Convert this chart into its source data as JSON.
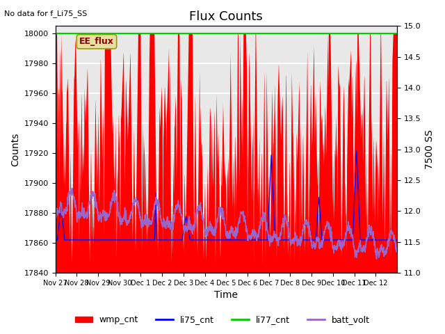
{
  "title": "Flux Counts",
  "no_data_text": "No data for f_Li75_SS",
  "xlabel": "Time",
  "ylabel_left": "Counts",
  "ylabel_right": "7500 SS",
  "ylim_left": [
    17840,
    18005
  ],
  "ylim_right": [
    11.0,
    15.0
  ],
  "yticks_left": [
    17840,
    17860,
    17880,
    17900,
    17920,
    17940,
    17960,
    17980,
    18000
  ],
  "yticks_right": [
    11.0,
    11.5,
    12.0,
    12.5,
    13.0,
    13.5,
    14.0,
    14.5,
    15.0
  ],
  "xtick_labels": [
    "Nov 27",
    "Nov 28",
    "Nov 29",
    "Nov 30",
    "Dec 1",
    "Dec 2",
    "Dec 3",
    "Dec 4",
    "Dec 5",
    "Dec 6",
    "Dec 7",
    "Dec 8",
    "Dec 9",
    "Dec 10",
    "Dec 11",
    "Dec 12"
  ],
  "legend_entries": [
    "wmp_cnt",
    "li75_cnt",
    "li77_cnt",
    "batt_volt"
  ],
  "wmp_color": "red",
  "li75_color": "blue",
  "li77_color": "#00cc00",
  "batt_color": "#9966cc",
  "background_color": "#e8e8e8",
  "grid_color": "white",
  "ee_flux_box_color": "#e8e0a0",
  "ee_flux_text_color": "#880000",
  "title_fontsize": 13,
  "axis_fontsize": 10,
  "tick_fontsize": 8
}
